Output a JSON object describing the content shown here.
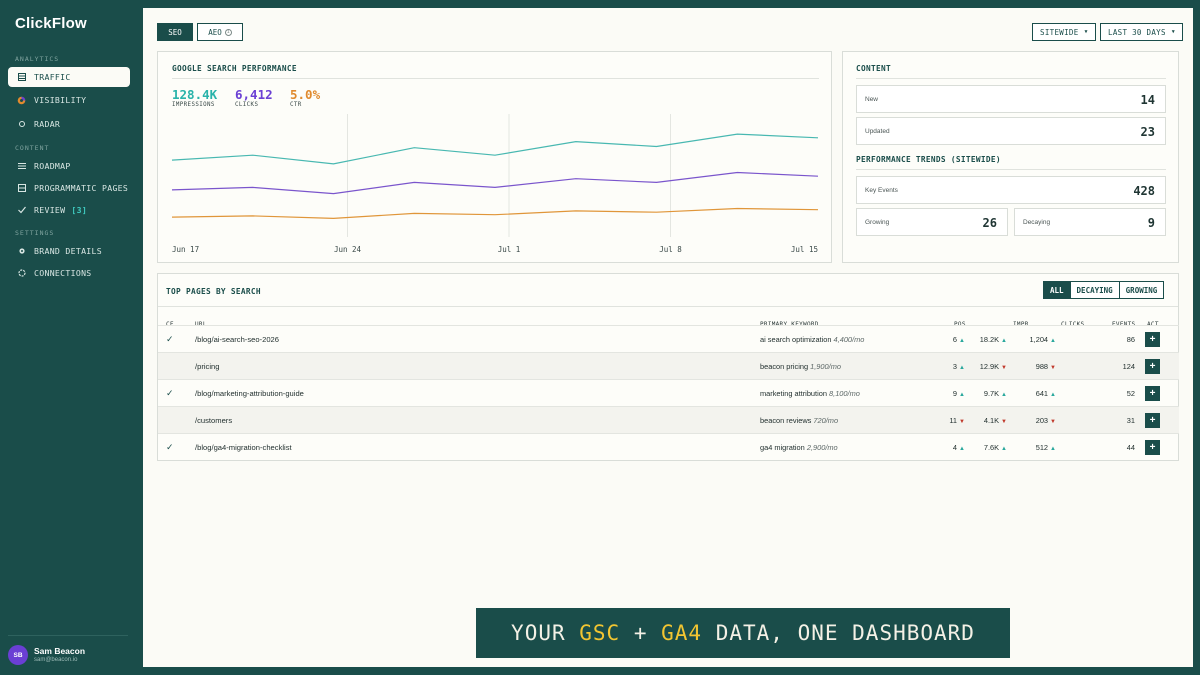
{
  "app": {
    "brand": "ClickFlow"
  },
  "sidebar": {
    "sections": [
      {
        "heading": "ANALYTICS",
        "items": [
          {
            "label": "TRAFFIC",
            "icon": "grid-icon",
            "active": true
          },
          {
            "label": "VISIBILITY",
            "icon": "pie-icon"
          },
          {
            "label": "RADAR",
            "icon": "radar-icon"
          }
        ]
      },
      {
        "heading": "CONTENT",
        "items": [
          {
            "label": "ROADMAP",
            "icon": "list-icon"
          },
          {
            "label": "PROGRAMMATIC PAGES",
            "icon": "pages-icon"
          },
          {
            "label": "REVIEW",
            "icon": "check-icon",
            "badge": "[3]"
          }
        ]
      },
      {
        "heading": "SETTINGS",
        "items": [
          {
            "label": "BRAND DETAILS",
            "icon": "gear-icon"
          },
          {
            "label": "CONNECTIONS",
            "icon": "connections-icon"
          }
        ]
      }
    ],
    "user": {
      "initials": "SB",
      "name": "Sam Beacon",
      "email": "sam@beacon.io"
    }
  },
  "toolbar": {
    "tabs": [
      {
        "label": "SEO",
        "active": true
      },
      {
        "label": "AEO",
        "active": false
      }
    ],
    "scope": "SITEWIDE",
    "range": "LAST 30 DAYS"
  },
  "search_panel": {
    "title": "GOOGLE SEARCH PERFORMANCE",
    "metrics": [
      {
        "value": "128.4K",
        "label": "IMPRESSIONS",
        "color": "#2ab3aa"
      },
      {
        "value": "6,412",
        "label": "CLICKS",
        "color": "#6a3fd4"
      },
      {
        "value": "5.0%",
        "label": "CTR",
        "color": "#e08a2e"
      }
    ]
  },
  "chart_data": {
    "type": "line",
    "x_ticks": [
      "Jun 17",
      "Jun 24",
      "Jul 1",
      "Jul 8",
      "Jul 15"
    ],
    "grid": "vertical",
    "series": [
      {
        "name": "IMPRESSIONS",
        "color": "#48b8b1",
        "values": [
          58,
          62,
          55,
          68,
          62,
          73,
          69,
          79,
          76
        ]
      },
      {
        "name": "CLICKS",
        "color": "#7a55cc",
        "values": [
          34,
          36,
          31,
          40,
          36,
          43,
          40,
          48,
          45
        ]
      },
      {
        "name": "CTR",
        "color": "#e0963a",
        "values": [
          12,
          13,
          11,
          15,
          14,
          17,
          16,
          19,
          18
        ]
      }
    ],
    "ylim": [
      0,
      100
    ]
  },
  "content_panel": {
    "title": "CONTENT",
    "stats": [
      {
        "label": "New",
        "value": "14"
      },
      {
        "label": "Updated",
        "value": "23"
      }
    ],
    "trends_title": "PERFORMANCE TRENDS (SITEWIDE)",
    "key_events": {
      "label": "Key Events",
      "value": "428"
    },
    "growing": {
      "label": "Growing",
      "value": "26"
    },
    "decaying": {
      "label": "Decaying",
      "value": "9"
    }
  },
  "table": {
    "title": "TOP PAGES BY SEARCH",
    "filters": [
      {
        "label": "ALL",
        "active": true
      },
      {
        "label": "DECAYING"
      },
      {
        "label": "GROWING"
      }
    ],
    "headers": {
      "cf": "CF",
      "url": "URL",
      "keyword": "PRIMARY KEYWORD",
      "pos": "POS",
      "impr": "IMPR",
      "clicks": "CLICKS",
      "events": "EVENTS",
      "act": "ACT"
    },
    "rows": [
      {
        "cf": true,
        "url": "/blog/ai-search-seo-2026",
        "keyword": "ai search optimization",
        "volume": "4,400/mo",
        "pos": "6",
        "pos_trend": "up",
        "impr": "18.2K",
        "impr_trend": "up",
        "clicks": "1,204",
        "clicks_trend": "up",
        "events": "86"
      },
      {
        "cf": false,
        "url": "/pricing",
        "keyword": "beacon pricing",
        "volume": "1,900/mo",
        "pos": "3",
        "pos_trend": "up",
        "impr": "12.9K",
        "impr_trend": "down",
        "clicks": "988",
        "clicks_trend": "down",
        "events": "124"
      },
      {
        "cf": true,
        "url": "/blog/marketing-attribution-guide",
        "keyword": "marketing attribution",
        "volume": "8,100/mo",
        "pos": "9",
        "pos_trend": "up",
        "impr": "9.7K",
        "impr_trend": "up",
        "clicks": "641",
        "clicks_trend": "up",
        "events": "52"
      },
      {
        "cf": false,
        "url": "/customers",
        "keyword": "beacon reviews",
        "volume": "720/mo",
        "pos": "11",
        "pos_trend": "down",
        "impr": "4.1K",
        "impr_trend": "down",
        "clicks": "203",
        "clicks_trend": "down",
        "events": "31"
      },
      {
        "cf": true,
        "url": "/blog/ga4-migration-checklist",
        "keyword": "ga4 migration",
        "volume": "2,900/mo",
        "pos": "4",
        "pos_trend": "up",
        "impr": "7.6K",
        "impr_trend": "up",
        "clicks": "512",
        "clicks_trend": "up",
        "events": "44"
      }
    ],
    "add_label": "+"
  },
  "banner": {
    "pre": "YOUR ",
    "hl1": "GSC",
    "mid": " + ",
    "hl2": "GA4",
    "post": " DATA, ONE DASHBOARD"
  }
}
